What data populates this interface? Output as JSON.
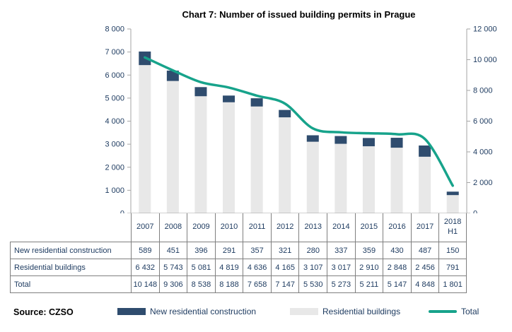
{
  "title": "Chart 7: Number of issued building permits in Prague",
  "source_label": "Source: CZSO",
  "colors": {
    "new_residential": "#2f4c6e",
    "residential": "#e8e8e8",
    "total_line": "#17a38b",
    "text_navy": "#1f3c61",
    "axis_gray": "#a6a6a6",
    "table_border": "#7f7f7f",
    "title_black": "#000000"
  },
  "chart_data": {
    "type": "bar",
    "stacked": true,
    "grid": false,
    "legend_position": "bottom",
    "title": "Chart 7: Number of issued building permits in Prague",
    "categories": [
      "2007",
      "2008",
      "2009",
      "2010",
      "2011",
      "2012",
      "2013",
      "2014",
      "2015",
      "2016",
      "2017",
      "2018 H1"
    ],
    "series": [
      {
        "name": "New residential construction",
        "type": "bar",
        "axis": "left",
        "color_key": "new_residential",
        "values": [
          589,
          451,
          396,
          291,
          357,
          321,
          280,
          337,
          359,
          430,
          487,
          150
        ]
      },
      {
        "name": "Residential buildings",
        "type": "bar",
        "axis": "left",
        "color_key": "residential",
        "values": [
          6432,
          5743,
          5081,
          4819,
          4636,
          4165,
          3107,
          3017,
          2910,
          2848,
          2456,
          791
        ]
      },
      {
        "name": "Total",
        "type": "line",
        "axis": "right",
        "color_key": "total_line",
        "values": [
          10148,
          9306,
          8538,
          8188,
          7658,
          7147,
          5530,
          5273,
          5211,
          5147,
          4848,
          1801
        ]
      }
    ],
    "left_axis": {
      "min": 0,
      "max": 8000,
      "step": 1000
    },
    "right_axis": {
      "min": 0,
      "max": 12000,
      "step": 2000
    }
  }
}
